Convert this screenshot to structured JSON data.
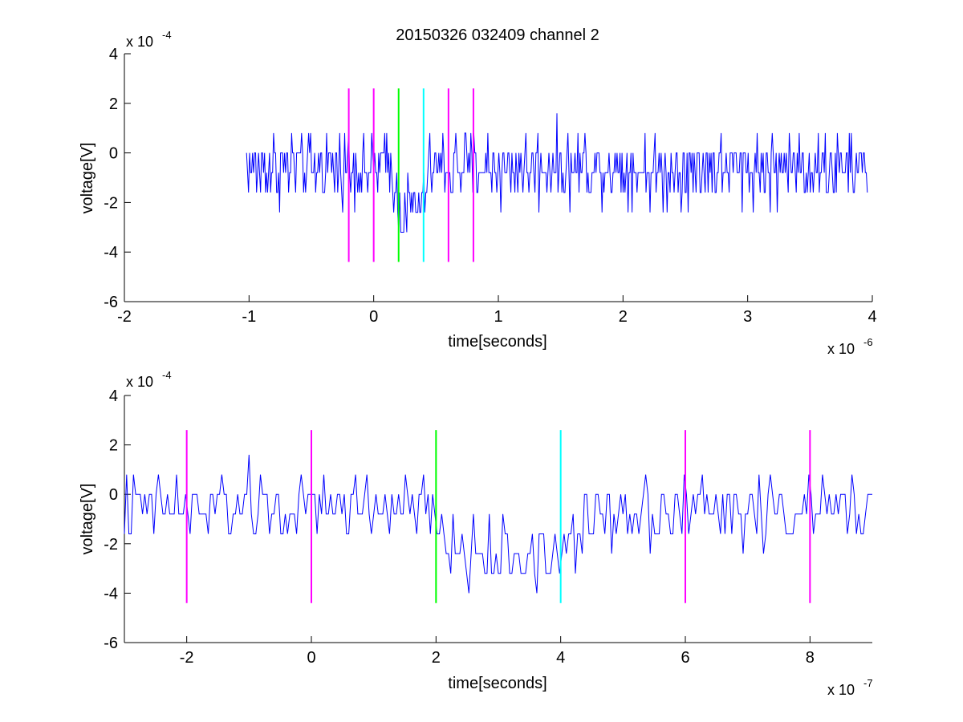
{
  "figure": {
    "title": "20150326 032409 channel 2"
  },
  "colors": {
    "signal": "#0000ff",
    "marker_magenta": "#ff00ff",
    "marker_green": "#00ff00",
    "marker_cyan": "#00ffff",
    "axes": "#000000"
  },
  "chart_data": [
    {
      "type": "line",
      "title": "20150326 032409 channel 2",
      "xlabel": "time[seconds]",
      "ylabel": "voltage[V]",
      "x_exponent_label": "x 10",
      "x_exponent": "-6",
      "y_exponent_label": "x 10",
      "y_exponent": "-4",
      "xlim": [
        -2,
        4
      ],
      "ylim": [
        -6,
        4
      ],
      "x_ticks": [
        "-2",
        "-1",
        "0",
        "1",
        "2",
        "3",
        "4"
      ],
      "y_ticks": [
        "-6",
        "-4",
        "-2",
        "0",
        "2",
        "4"
      ],
      "series": [
        {
          "color": "#0000ff",
          "x_range": [
            -1.02,
            3.96
          ],
          "levels": [
            -3.2,
            -2.4,
            -1.6,
            -0.8,
            0,
            0.8,
            1.6,
            2.4
          ],
          "baseline": -0.6,
          "noise": 0.9,
          "dip": {
            "start": 0.15,
            "end": 0.45,
            "depth": -2.2
          }
        }
      ],
      "vertical_markers": [
        {
          "x": -0.2,
          "color": "magenta",
          "y_range": [
            -4.4,
            2.6
          ]
        },
        {
          "x": 0.0,
          "color": "magenta",
          "y_range": [
            -4.4,
            2.6
          ]
        },
        {
          "x": 0.2,
          "color": "green",
          "y_range": [
            -4.4,
            2.6
          ]
        },
        {
          "x": 0.4,
          "color": "cyan",
          "y_range": [
            -4.4,
            2.6
          ]
        },
        {
          "x": 0.6,
          "color": "magenta",
          "y_range": [
            -4.4,
            2.6
          ]
        },
        {
          "x": 0.8,
          "color": "magenta",
          "y_range": [
            -4.4,
            2.6
          ]
        }
      ]
    },
    {
      "type": "line",
      "title": "",
      "xlabel": "time[seconds]",
      "ylabel": "voltage[V]",
      "x_exponent_label": "x 10",
      "x_exponent": "-7",
      "y_exponent_label": "x 10",
      "y_exponent": "-4",
      "xlim": [
        -3,
        9
      ],
      "ylim": [
        -6,
        4
      ],
      "x_ticks": [
        "-2",
        "0",
        "2",
        "4",
        "6",
        "8"
      ],
      "y_ticks": [
        "-6",
        "-4",
        "-2",
        "0",
        "2",
        "4"
      ],
      "series": [
        {
          "color": "#0000ff",
          "x_range": [
            -3,
            9
          ],
          "levels": [
            -4.0,
            -3.2,
            -2.4,
            -1.6,
            -0.8,
            0,
            0.8,
            1.6
          ],
          "baseline": -0.6,
          "noise": 0.9,
          "dip": {
            "start": 1.8,
            "end": 4.6,
            "depth": -2.4
          }
        }
      ],
      "vertical_markers": [
        {
          "x": -2,
          "color": "magenta",
          "y_range": [
            -4.4,
            2.6
          ]
        },
        {
          "x": 0,
          "color": "magenta",
          "y_range": [
            -4.4,
            2.6
          ]
        },
        {
          "x": 2,
          "color": "green",
          "y_range": [
            -4.4,
            2.6
          ]
        },
        {
          "x": 4,
          "color": "cyan",
          "y_range": [
            -4.4,
            2.6
          ]
        },
        {
          "x": 6,
          "color": "magenta",
          "y_range": [
            -4.4,
            2.6
          ]
        },
        {
          "x": 8,
          "color": "magenta",
          "y_range": [
            -4.4,
            2.6
          ]
        }
      ]
    }
  ]
}
